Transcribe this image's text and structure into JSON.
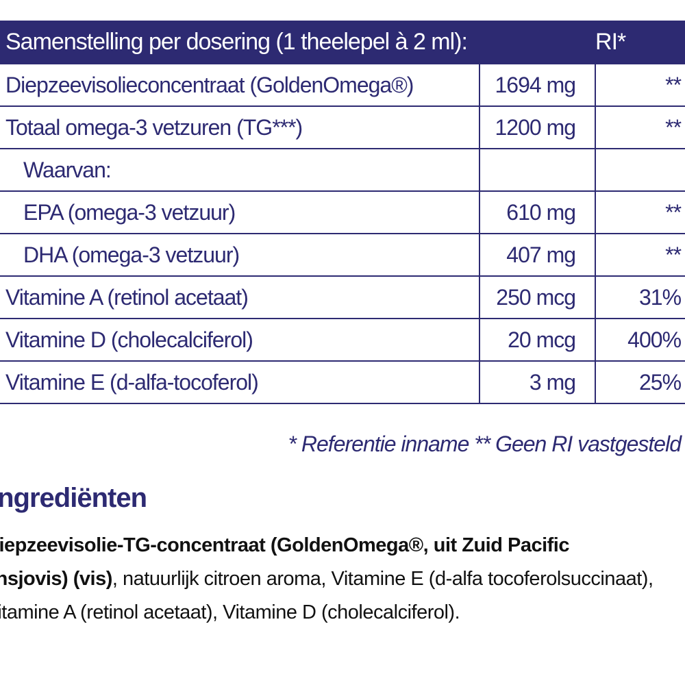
{
  "table": {
    "header": {
      "composition": "Samenstelling per dosering (1 theelepel à 2 ml):",
      "ri": "RI*"
    },
    "rows": [
      {
        "name": "Diepzeevisolieconcentraat (GoldenOmega®)",
        "amount": "1694 mg",
        "ri": "**",
        "indent": false
      },
      {
        "name": "Totaal omega-3 vetzuren (TG***)",
        "amount": "1200 mg",
        "ri": "**",
        "indent": false
      },
      {
        "name": "Waarvan:",
        "amount": "",
        "ri": "",
        "indent": true
      },
      {
        "name": "EPA (omega-3 vetzuur)",
        "amount": "610 mg",
        "ri": "**",
        "indent": true
      },
      {
        "name": "DHA (omega-3 vetzuur)",
        "amount": "407 mg",
        "ri": "**",
        "indent": true
      },
      {
        "name": "Vitamine A (retinol acetaat)",
        "amount": "250 mcg",
        "ri": "31%",
        "indent": false
      },
      {
        "name": "Vitamine D (cholecalciferol)",
        "amount": "20 mcg",
        "ri": "400%",
        "indent": false
      },
      {
        "name": "Vitamine E (d-alfa-tocoferol)",
        "amount": "3 mg",
        "ri": "25%",
        "indent": false
      }
    ]
  },
  "footnote": "* Referentie inname  ** Geen RI vastgesteld",
  "ingredients": {
    "title": "Ingrediënten",
    "bold_part": "Diepzeevisolie-TG-concentraat (GoldenOmega®, uit Zuid Pacific ansjovis) (vis)",
    "rest": ", natuurlijk citroen aroma, Vitamine E (d-alfa tocoferolsuccinaat), Vitamine A (retinol acetaat), Vitamine D (cholecalciferol)."
  },
  "colors": {
    "brand_navy": "#2d2a72",
    "text": "#111111"
  }
}
